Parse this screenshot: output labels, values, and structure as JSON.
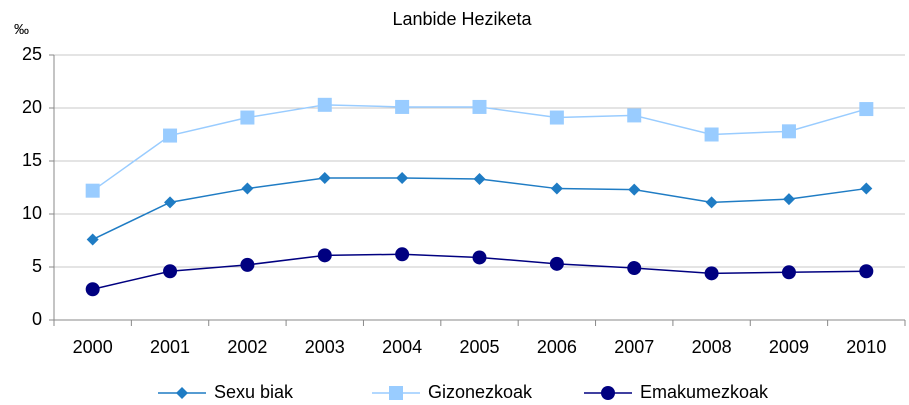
{
  "chart_data": {
    "type": "line",
    "title": "Lanbide Heziketa",
    "y_label": "‰",
    "categories": [
      "2000",
      "2001",
      "2002",
      "2003",
      "2004",
      "2005",
      "2006",
      "2007",
      "2008",
      "2009",
      "2010"
    ],
    "series": [
      {
        "name": "Sexu biak",
        "color": "#1f7cc4",
        "marker": "diamond",
        "values": [
          7.6,
          11.1,
          12.4,
          13.4,
          13.4,
          13.3,
          12.4,
          12.3,
          11.1,
          11.4,
          12.4
        ]
      },
      {
        "name": "Gizonezkoak",
        "color": "#99ccff",
        "marker": "square",
        "values": [
          12.2,
          17.4,
          19.1,
          20.3,
          20.1,
          20.1,
          19.1,
          19.3,
          17.5,
          17.8,
          19.9
        ]
      },
      {
        "name": "Emakumezkoak",
        "color": "#000080",
        "marker": "circle",
        "values": [
          2.9,
          4.6,
          5.2,
          6.1,
          6.2,
          5.9,
          5.3,
          4.9,
          4.4,
          4.5,
          4.6
        ]
      }
    ],
    "ylim": [
      0,
      25
    ],
    "yticks": [
      0,
      5,
      10,
      15,
      20,
      25
    ],
    "grid": true,
    "legend": "bottom"
  }
}
